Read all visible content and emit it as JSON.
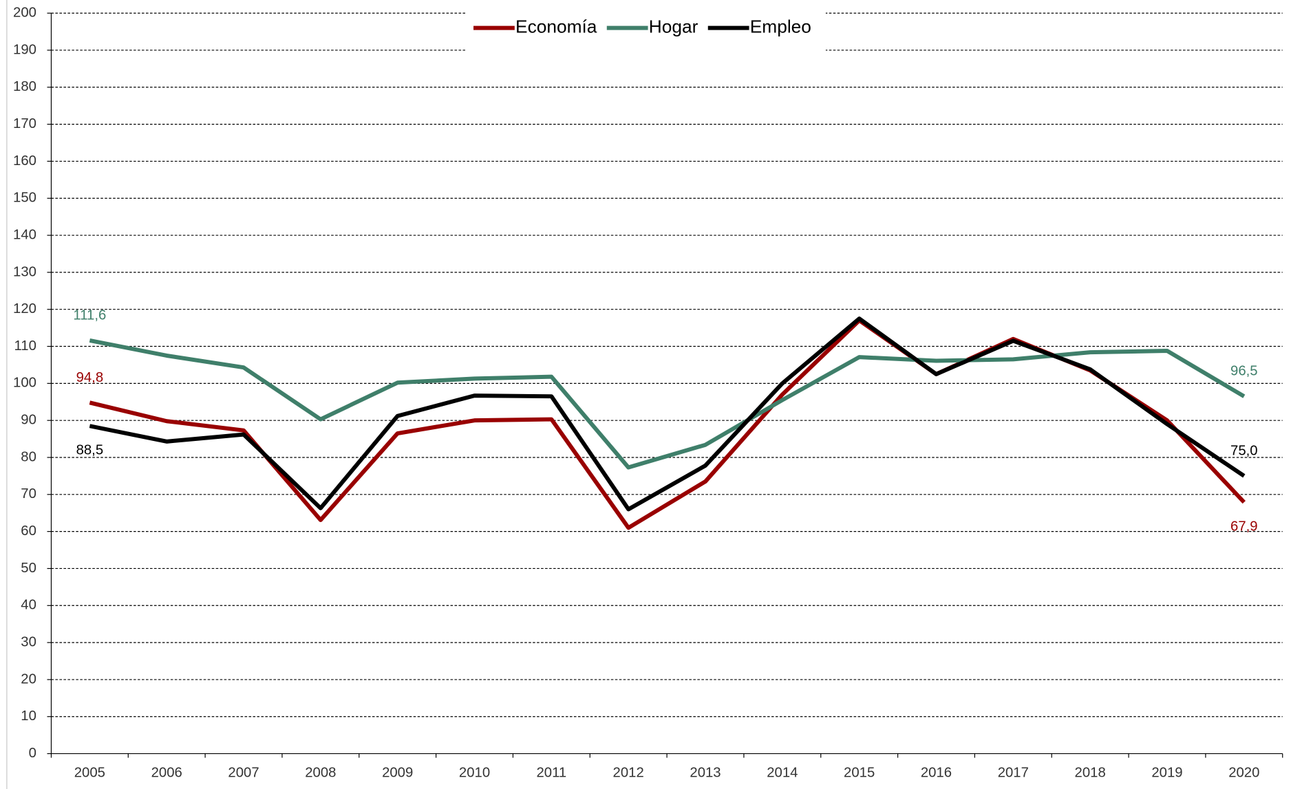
{
  "chart_data": {
    "type": "line",
    "categories": [
      "2005",
      "2006",
      "2007",
      "2008",
      "2009",
      "2010",
      "2011",
      "2012",
      "2013",
      "2014",
      "2015",
      "2016",
      "2017",
      "2018",
      "2019",
      "2020"
    ],
    "series": [
      {
        "name": "Economía",
        "color": "#990000",
        "values": [
          94.8,
          89.8,
          87.3,
          63.1,
          86.5,
          90.0,
          90.3,
          61.0,
          73.5,
          97.0,
          117.0,
          102.5,
          112.0,
          103.5,
          90.0,
          67.9
        ],
        "value_labels": [
          "94,8",
          null,
          null,
          null,
          null,
          null,
          null,
          null,
          null,
          null,
          null,
          null,
          null,
          null,
          null,
          "67,9"
        ]
      },
      {
        "name": "Hogar",
        "color": "#3f7f6a",
        "values": [
          111.6,
          107.5,
          104.3,
          90.3,
          100.2,
          101.3,
          101.8,
          77.3,
          83.4,
          95.5,
          107.1,
          106.1,
          106.5,
          108.4,
          108.8,
          96.5
        ],
        "value_labels": [
          "111,6",
          null,
          null,
          null,
          null,
          null,
          null,
          null,
          null,
          null,
          null,
          null,
          null,
          null,
          null,
          "96,5"
        ]
      },
      {
        "name": "Empleo",
        "color": "#000000",
        "values": [
          88.5,
          84.3,
          86.2,
          66.3,
          91.2,
          96.7,
          96.5,
          66.0,
          77.8,
          100.0,
          117.5,
          102.5,
          111.5,
          103.8,
          89.0,
          75.0
        ],
        "value_labels": [
          "88,5",
          null,
          null,
          null,
          null,
          null,
          null,
          null,
          null,
          null,
          null,
          null,
          null,
          null,
          null,
          "75,0"
        ]
      }
    ],
    "ylim": [
      0,
      200
    ],
    "yticks": [
      0,
      10,
      20,
      30,
      40,
      50,
      60,
      70,
      80,
      90,
      100,
      110,
      120,
      130,
      140,
      150,
      160,
      170,
      180,
      190,
      200
    ],
    "grid": true,
    "legend": "top"
  }
}
